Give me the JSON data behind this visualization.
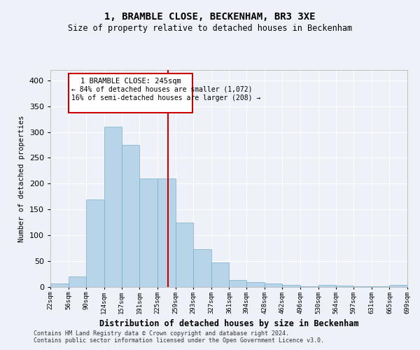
{
  "title1": "1, BRAMBLE CLOSE, BECKENHAM, BR3 3XE",
  "title2": "Size of property relative to detached houses in Beckenham",
  "xlabel": "Distribution of detached houses by size in Beckenham",
  "ylabel": "Number of detached properties",
  "bar_color": "#b8d4e8",
  "bar_edge_color": "#7aafc8",
  "background_color": "#eef2f8",
  "grid_color": "#ffffff",
  "annotation_box_color": "#cc0000",
  "vline_color": "#cc0000",
  "vline_x": 245,
  "bin_edges": [
    22,
    56,
    90,
    124,
    157,
    191,
    225,
    259,
    293,
    327,
    361,
    394,
    428,
    462,
    496,
    530,
    564,
    597,
    631,
    665,
    699
  ],
  "bar_heights": [
    7,
    20,
    170,
    310,
    275,
    210,
    210,
    125,
    73,
    48,
    13,
    10,
    7,
    4,
    1,
    4,
    3,
    1,
    1,
    4
  ],
  "tick_labels": [
    "22sqm",
    "56sqm",
    "90sqm",
    "124sqm",
    "157sqm",
    "191sqm",
    "225sqm",
    "259sqm",
    "293sqm",
    "327sqm",
    "361sqm",
    "394sqm",
    "428sqm",
    "462sqm",
    "496sqm",
    "530sqm",
    "564sqm",
    "597sqm",
    "631sqm",
    "665sqm",
    "699sqm"
  ],
  "annotation_line1": "1 BRAMBLE CLOSE: 245sqm",
  "annotation_line2": "← 84% of detached houses are smaller (1,072)",
  "annotation_line3": "16% of semi-detached houses are larger (208) →",
  "footnote1": "Contains HM Land Registry data © Crown copyright and database right 2024.",
  "footnote2": "Contains public sector information licensed under the Open Government Licence v3.0.",
  "ylim": [
    0,
    420
  ],
  "yticks": [
    0,
    50,
    100,
    150,
    200,
    250,
    300,
    350,
    400
  ]
}
